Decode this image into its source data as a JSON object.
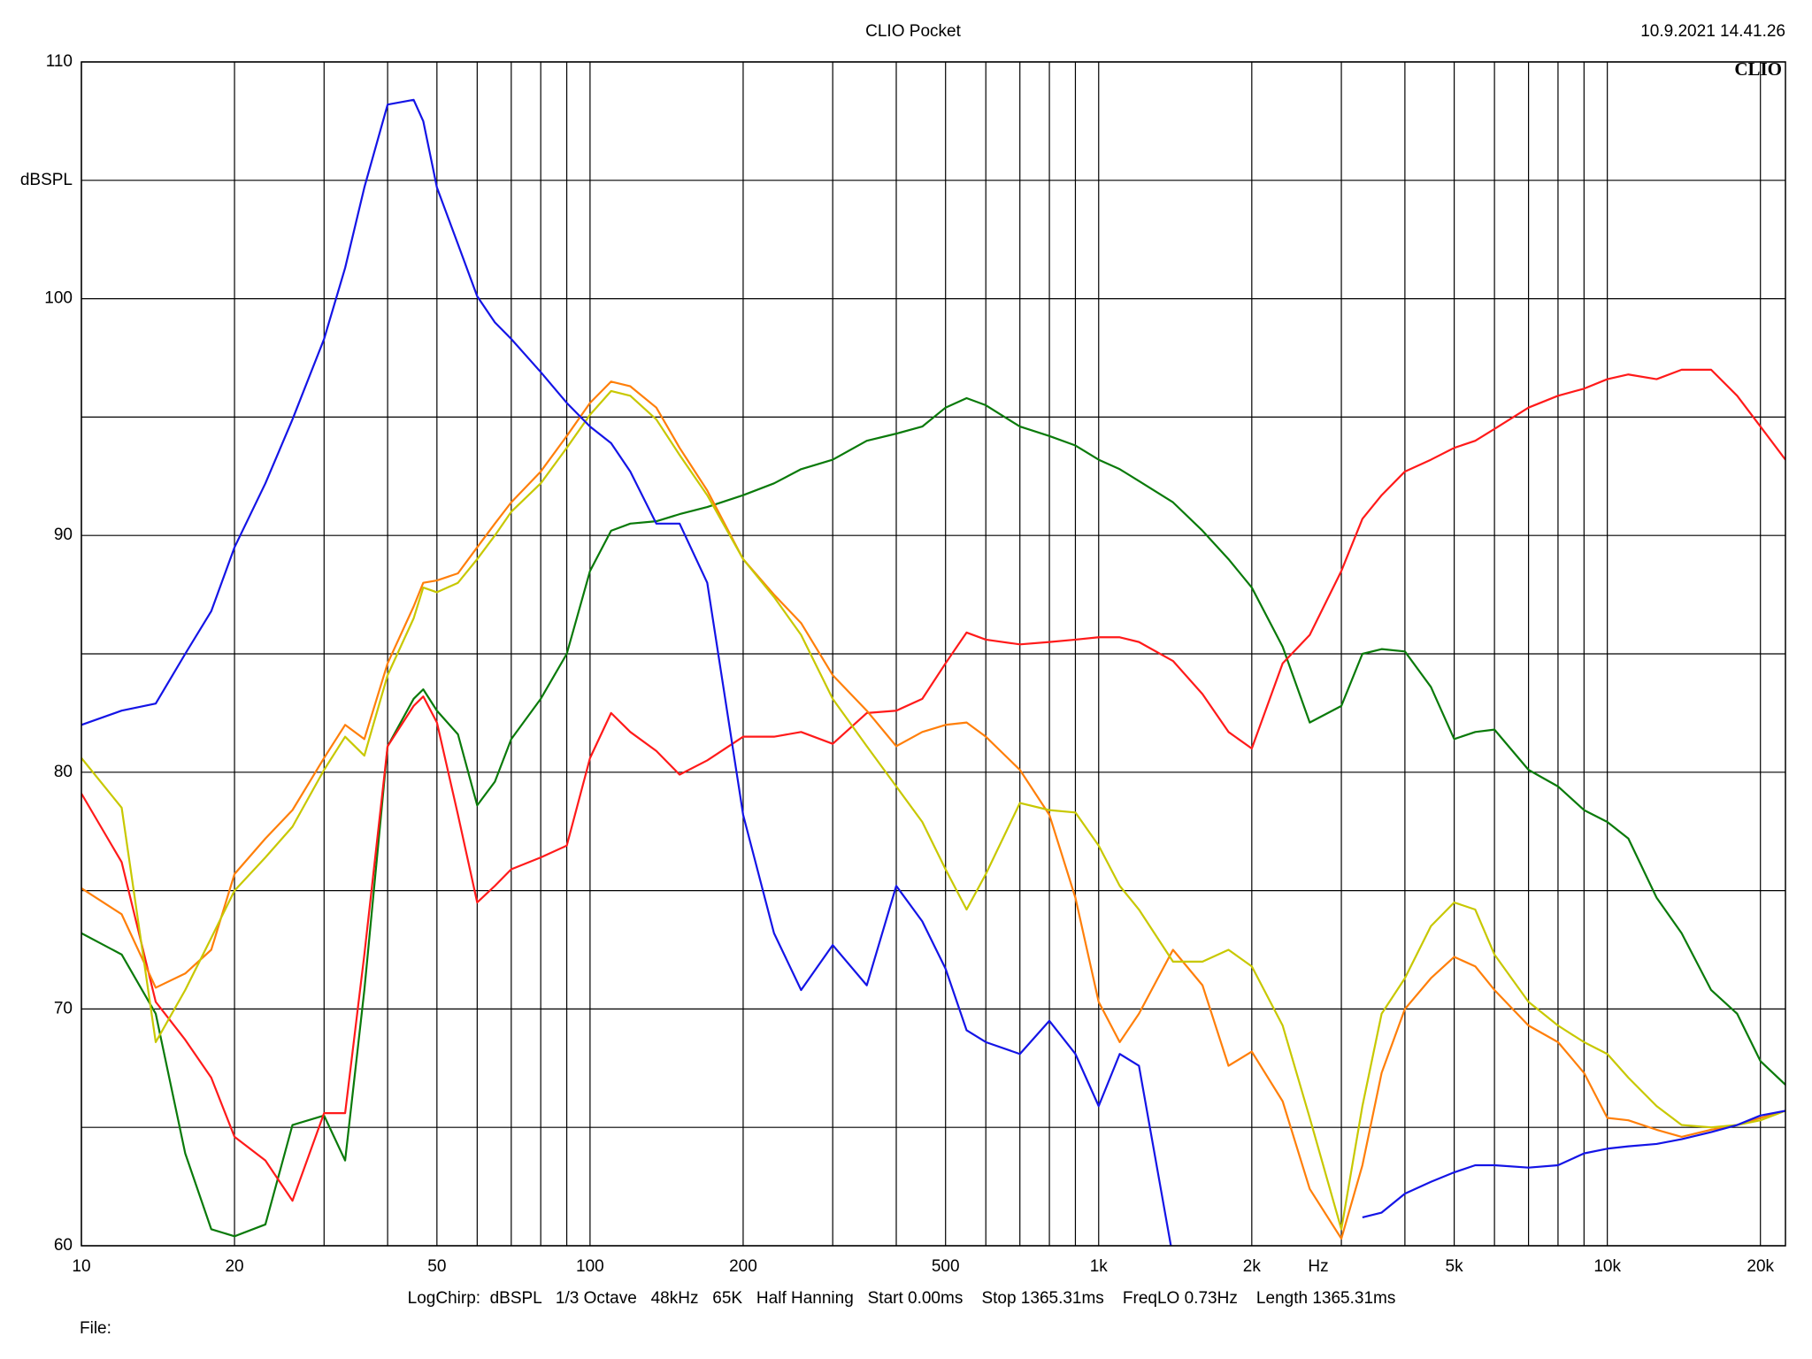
{
  "chart_data": {
    "type": "line",
    "title": "CLIO Pocket",
    "timestamp": "10.9.2021 14.41.26",
    "logo": "CLIO",
    "ylabel": "dBSPL",
    "xlabel": "Hz",
    "footer": "LogChirp:  dBSPL   1/3 Octave   48kHz   65K   Half Hanning   Start 0.00ms    Stop 1365.31ms    FreqLO 0.73Hz    Length 1365.31ms",
    "file_label": "File:",
    "x_scale": "log",
    "grid": true,
    "xlim": [
      10,
      22400
    ],
    "ylim": [
      60,
      110
    ],
    "xticks": [
      10,
      20,
      50,
      100,
      200,
      500,
      {
        "value": 1000,
        "label": "1k"
      },
      {
        "value": 2000,
        "label": "2k"
      },
      {
        "value": 5000,
        "label": "5k"
      },
      {
        "value": 10000,
        "label": "10k"
      },
      {
        "value": 20000,
        "label": "20k"
      }
    ],
    "x_minor_grid": [
      30,
      40,
      60,
      70,
      80,
      90,
      300,
      400,
      600,
      700,
      800,
      900,
      3000,
      4000,
      6000,
      7000,
      8000,
      9000
    ],
    "yticks": [
      60,
      70,
      80,
      90,
      100,
      110
    ],
    "y_minor_grid": [
      65,
      75,
      85,
      95,
      105
    ],
    "x": [
      10,
      12,
      14,
      16,
      18,
      20,
      23,
      26,
      30,
      33,
      36,
      40,
      45,
      47,
      50,
      55,
      60,
      65,
      70,
      80,
      90,
      100,
      110,
      120,
      135,
      150,
      170,
      200,
      230,
      260,
      300,
      350,
      400,
      450,
      500,
      550,
      600,
      700,
      800,
      900,
      1000,
      1100,
      1200,
      1400,
      1600,
      1800,
      2000,
      2300,
      2600,
      3000,
      3300,
      3600,
      4000,
      4500,
      5000,
      5500,
      6000,
      7000,
      8000,
      9000,
      10000,
      11000,
      12500,
      14000,
      16000,
      18000,
      20000,
      22400
    ],
    "series": [
      {
        "color": "#0a7a0a",
        "values": [
          73.2,
          72.3,
          69.8,
          63.9,
          60.7,
          60.4,
          60.9,
          65.1,
          65.5,
          63.6,
          70.8,
          81.1,
          83.1,
          83.5,
          82.6,
          81.6,
          78.6,
          79.6,
          81.4,
          83.1,
          85.0,
          88.5,
          90.2,
          90.5,
          90.6,
          90.9,
          91.2,
          91.7,
          92.2,
          92.8,
          93.2,
          94.0,
          94.3,
          94.6,
          95.4,
          95.8,
          95.5,
          94.6,
          94.2,
          93.8,
          93.2,
          92.8,
          92.3,
          91.4,
          90.2,
          89.0,
          87.8,
          85.3,
          82.1,
          82.8,
          85.0,
          85.2,
          85.1,
          83.6,
          81.4,
          81.7,
          81.8,
          80.1,
          79.4,
          78.4,
          77.9,
          77.2,
          74.7,
          73.2,
          70.8,
          69.8,
          67.8,
          66.8
        ]
      },
      {
        "color": "#ff1a1a",
        "values": [
          79.1,
          76.2,
          70.3,
          68.7,
          67.1,
          64.6,
          63.6,
          61.9,
          65.6,
          65.6,
          72.3,
          81.1,
          82.8,
          83.2,
          82.1,
          78.2,
          74.5,
          75.2,
          75.9,
          76.4,
          76.9,
          80.6,
          82.5,
          81.7,
          80.9,
          79.9,
          80.5,
          81.5,
          81.5,
          81.7,
          81.2,
          82.5,
          82.6,
          83.1,
          84.6,
          85.9,
          85.6,
          85.4,
          85.5,
          85.6,
          85.7,
          85.7,
          85.5,
          84.7,
          83.3,
          81.7,
          81.0,
          84.6,
          85.8,
          88.5,
          90.7,
          91.7,
          92.7,
          93.2,
          93.7,
          94.0,
          94.5,
          95.4,
          95.9,
          96.2,
          96.6,
          96.8,
          96.6,
          97.0,
          97.0,
          95.9,
          94.6,
          93.2
        ]
      },
      {
        "color": "#ff7f0a",
        "values": [
          75.1,
          74.0,
          70.9,
          71.5,
          72.5,
          75.7,
          77.2,
          78.4,
          80.6,
          82.0,
          81.4,
          84.6,
          87.0,
          88.0,
          88.1,
          88.4,
          89.5,
          90.5,
          91.4,
          92.7,
          94.2,
          95.6,
          96.5,
          96.3,
          95.4,
          93.7,
          91.9,
          89.0,
          87.5,
          86.3,
          84.1,
          82.6,
          81.1,
          81.7,
          82.0,
          82.1,
          81.5,
          80.1,
          78.2,
          74.7,
          70.3,
          68.6,
          69.8,
          72.5,
          71.0,
          67.6,
          68.2,
          66.1,
          62.4,
          60.3,
          63.4,
          67.3,
          70.0,
          71.3,
          72.2,
          71.8,
          70.8,
          69.3,
          68.6,
          67.3,
          65.4,
          65.3,
          64.9,
          64.6,
          64.9,
          65.1,
          65.4,
          65.7
        ]
      },
      {
        "color": "#c8c800",
        "values": [
          80.6,
          78.5,
          68.6,
          70.8,
          73.0,
          75.0,
          76.4,
          77.7,
          80.1,
          81.5,
          80.7,
          84.1,
          86.5,
          87.8,
          87.6,
          88.0,
          89.0,
          90.0,
          91.0,
          92.2,
          93.7,
          95.1,
          96.1,
          95.9,
          94.9,
          93.4,
          91.7,
          89.0,
          87.4,
          85.8,
          83.1,
          81.1,
          79.4,
          77.9,
          75.9,
          74.2,
          75.7,
          78.7,
          78.4,
          78.3,
          76.9,
          75.2,
          74.2,
          72.0,
          72.0,
          72.5,
          71.8,
          69.3,
          65.4,
          60.7,
          65.9,
          69.8,
          71.3,
          73.5,
          74.5,
          74.2,
          72.3,
          70.3,
          69.3,
          68.6,
          68.1,
          67.1,
          65.9,
          65.1,
          65.0,
          65.1,
          65.3,
          65.7
        ]
      },
      {
        "color": "#1414e6",
        "values": [
          82.0,
          82.6,
          82.9,
          85.0,
          86.8,
          89.5,
          92.2,
          94.9,
          98.3,
          101.3,
          104.7,
          108.2,
          108.4,
          107.5,
          104.7,
          102.3,
          100.1,
          99.0,
          98.3,
          96.9,
          95.6,
          94.6,
          93.9,
          92.7,
          90.5,
          90.5,
          88.0,
          78.2,
          73.2,
          70.8,
          72.7,
          71.0,
          75.2,
          73.7,
          71.7,
          69.1,
          68.6,
          68.1,
          69.5,
          68.1,
          65.9,
          68.1,
          67.6,
          59.5,
          null,
          null,
          null,
          null,
          null,
          null,
          61.2,
          61.4,
          62.2,
          62.7,
          63.1,
          63.4,
          63.4,
          63.3,
          63.4,
          63.9,
          64.1,
          64.2,
          64.3,
          64.5,
          64.8,
          65.1,
          65.5,
          65.7
        ]
      }
    ]
  }
}
